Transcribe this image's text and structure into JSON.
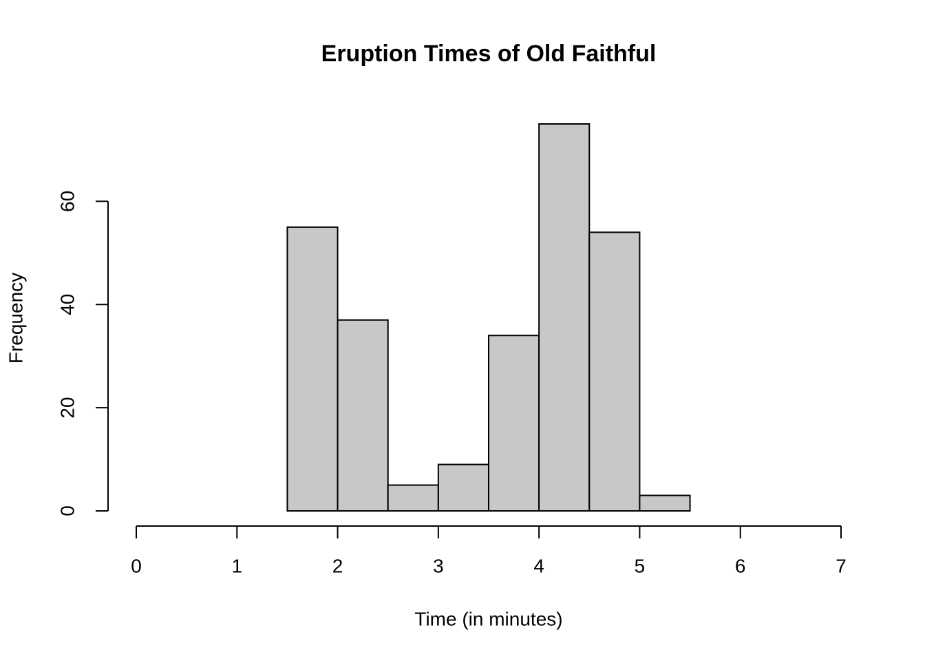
{
  "chart_data": {
    "type": "histogram",
    "title": "Eruption Times of Old Faithful",
    "x_label": "Time (in minutes)",
    "y_label": "Frequency",
    "bins": [
      0,
      0.5,
      1,
      1.5,
      2,
      2.5,
      3,
      3.5,
      4,
      4.5,
      5,
      5.5,
      6,
      6.5,
      7
    ],
    "counts": [
      0,
      0,
      0,
      55,
      37,
      5,
      9,
      34,
      75,
      54,
      3,
      0,
      0,
      0
    ],
    "color": "#c8c8c8",
    "xlim": [
      0,
      7
    ],
    "xticks": [
      0,
      1,
      2,
      3,
      4,
      5,
      6,
      7
    ],
    "ylim": [
      0,
      75
    ],
    "yticks": [
      0,
      20,
      40,
      60
    ]
  }
}
